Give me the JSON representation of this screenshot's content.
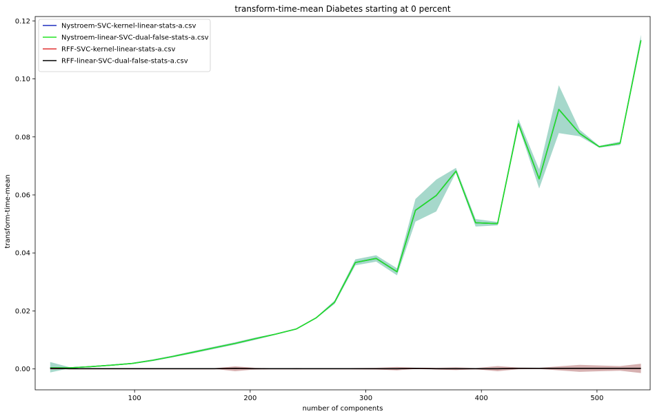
{
  "chart_data": {
    "type": "line",
    "title": "transform-time-mean Diabetes starting at 0 percent",
    "xlabel": "number of components",
    "ylabel": "transform-time-mean",
    "xlim": [
      14,
      546
    ],
    "ylim": [
      -0.0072,
      0.1215
    ],
    "xticks": [
      100,
      200,
      300,
      400,
      500
    ],
    "yticks": [
      0.0,
      0.02,
      0.04,
      0.06,
      0.08,
      0.1,
      0.12
    ],
    "ytick_labels": [
      "0.00",
      "0.02",
      "0.04",
      "0.06",
      "0.08",
      "0.10",
      "0.12"
    ],
    "grid": false,
    "legend_position": "top-left",
    "x": [
      27,
      44,
      62,
      80,
      98,
      116,
      133,
      151,
      169,
      187,
      204,
      222,
      240,
      257,
      273,
      291,
      309,
      327,
      343,
      361,
      378,
      395,
      414,
      432,
      450,
      467,
      485,
      502,
      520,
      538
    ],
    "series": [
      {
        "name": "Nystroem-SVC-kernel-linear-stats-a.csv",
        "color": "#1f2fbf",
        "values": [
          0.0004,
          0.0004,
          0.0008,
          0.0013,
          0.0019,
          0.003,
          0.0043,
          0.0058,
          0.0073,
          0.0088,
          0.0104,
          0.012,
          0.0138,
          0.0176,
          0.023,
          0.0367,
          0.0381,
          0.0335,
          0.0547,
          0.0598,
          0.0682,
          0.0504,
          0.0501,
          0.0845,
          0.0655,
          0.0895,
          0.0812,
          0.0766,
          0.0778,
          0.1133
        ],
        "lower": [
          -0.0012,
          0.0002,
          0.0006,
          0.0011,
          0.0017,
          0.0027,
          0.004,
          0.0054,
          0.0069,
          0.0084,
          0.01,
          0.0118,
          0.0137,
          0.0174,
          0.0224,
          0.0357,
          0.037,
          0.0323,
          0.0508,
          0.0543,
          0.0677,
          0.0491,
          0.0495,
          0.0838,
          0.0622,
          0.0813,
          0.0802,
          0.0763,
          0.0772,
          0.1126
        ],
        "upper": [
          0.0024,
          0.0006,
          0.001,
          0.0015,
          0.0021,
          0.0033,
          0.0046,
          0.0062,
          0.0077,
          0.0092,
          0.0108,
          0.0122,
          0.014,
          0.0178,
          0.0236,
          0.0378,
          0.0392,
          0.0347,
          0.0586,
          0.0653,
          0.0693,
          0.0517,
          0.0507,
          0.0862,
          0.0688,
          0.0978,
          0.0825,
          0.0769,
          0.0784,
          0.1152
        ],
        "band_color": "#3aa98c"
      },
      {
        "name": "Nystroem-linear-SVC-dual-false-stats-a.csv",
        "color": "#22e322",
        "values": [
          0.0004,
          0.0004,
          0.0008,
          0.0013,
          0.0019,
          0.003,
          0.0043,
          0.0058,
          0.0073,
          0.0088,
          0.0104,
          0.012,
          0.0138,
          0.0176,
          0.023,
          0.0367,
          0.0381,
          0.0335,
          0.0547,
          0.0598,
          0.0682,
          0.0504,
          0.0501,
          0.0845,
          0.0655,
          0.0895,
          0.0812,
          0.0766,
          0.0778,
          0.1133
        ]
      },
      {
        "name": "RFF-SVC-kernel-linear-stats-a.csv",
        "color": "#e03030",
        "values": [
          0.0002,
          0.0001,
          0.0001,
          0.0001,
          0.0001,
          0.0001,
          0.0001,
          0.0001,
          0.0001,
          0.0002,
          0.0001,
          0.0001,
          0.0001,
          0.0001,
          0.0001,
          0.0001,
          0.0001,
          0.0001,
          0.0002,
          0.0001,
          0.0001,
          0.0001,
          0.0001,
          0.0002,
          0.0002,
          0.0002,
          0.0002,
          0.0002,
          0.0002,
          0.0002
        ],
        "lower": [
          -0.0002,
          0.0,
          0.0,
          0.0,
          0.0,
          0.0,
          0.0,
          0.0,
          0.0,
          -0.0008,
          -0.0002,
          0.0,
          -0.0001,
          0.0,
          0.0,
          -0.0001,
          -0.0002,
          -0.0005,
          0.0,
          -0.0002,
          -0.0004,
          -0.0001,
          -0.0008,
          -0.0001,
          0.0,
          -0.0005,
          -0.001,
          -0.0008,
          -0.0006,
          -0.0014
        ],
        "upper": [
          0.0006,
          0.0002,
          0.0002,
          0.0002,
          0.0002,
          0.0002,
          0.0002,
          0.0002,
          0.0002,
          0.0009,
          0.0004,
          0.0002,
          0.0003,
          0.0002,
          0.0002,
          0.0003,
          0.0004,
          0.0007,
          0.0004,
          0.0004,
          0.0006,
          0.0003,
          0.001,
          0.0005,
          0.0004,
          0.0009,
          0.0014,
          0.0012,
          0.001,
          0.0018
        ],
        "band_color": "#a5504f"
      },
      {
        "name": "RFF-linear-SVC-dual-false-stats-a.csv",
        "color": "#000000",
        "values": [
          0.0002,
          0.0001,
          0.0001,
          0.0001,
          0.0001,
          0.0001,
          0.0001,
          0.0001,
          0.0001,
          0.0002,
          0.0001,
          0.0001,
          0.0001,
          0.0001,
          0.0001,
          0.0001,
          0.0001,
          0.0001,
          0.0002,
          0.0001,
          0.0001,
          0.0001,
          0.0001,
          0.0002,
          0.0002,
          0.0002,
          0.0002,
          0.0002,
          0.0002,
          0.0002
        ]
      }
    ]
  }
}
